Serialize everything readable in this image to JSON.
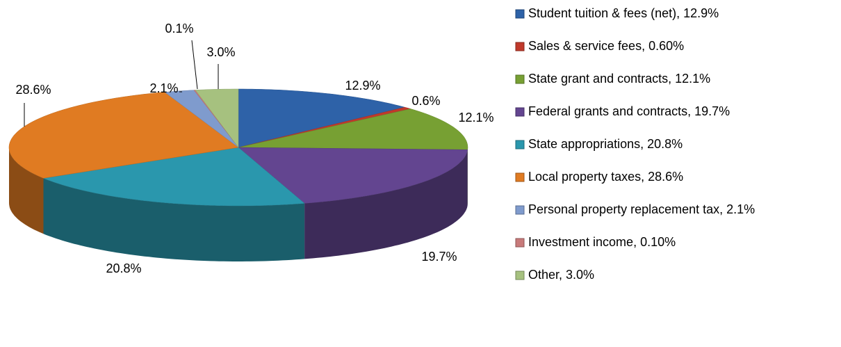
{
  "chart_data": {
    "type": "pie3d",
    "categories": [
      "Student tuition & fees (net), 12.9%",
      "Sales & service fees, 0.60%",
      "State grant and contracts, 12.1%",
      "Federal grants and contracts, 19.7%",
      "State appropriations, 20.8%",
      "Local property taxes, 28.6%",
      "Personal property replacement tax, 2.1%",
      "Investment income, 0.10%",
      "Other, 3.0%"
    ],
    "values": [
      12.9,
      0.6,
      12.1,
      19.7,
      20.8,
      28.6,
      2.1,
      0.1,
      3.0
    ],
    "value_labels": [
      "12.9%",
      "0.6%",
      "12.1%",
      "19.7%",
      "20.8%",
      "28.6%",
      "2.1%",
      "0.1%",
      "3.0%"
    ],
    "colors": [
      "#2e62a8",
      "#c0392b",
      "#77a033",
      "#634590",
      "#2a97ad",
      "#e07b22",
      "#7f9bcd",
      "#c87a7a",
      "#a6c17f"
    ],
    "legend": "right"
  }
}
